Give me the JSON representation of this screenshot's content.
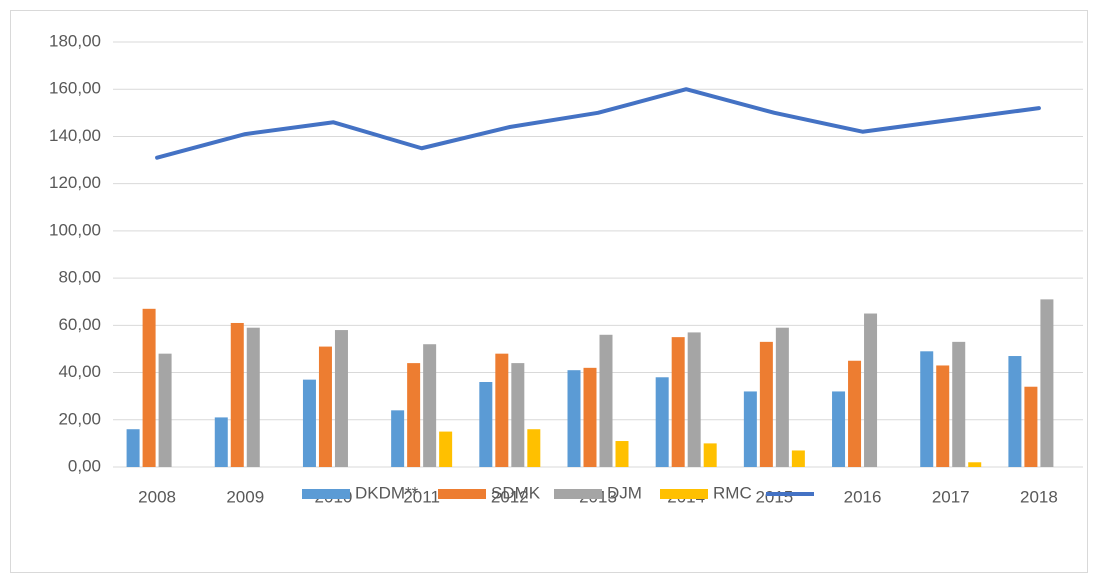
{
  "chart_data": {
    "type": "bar",
    "categories": [
      "2008",
      "2009",
      "2010",
      "2011",
      "2012",
      "2013",
      "2014",
      "2015",
      "2016",
      "2017",
      "2018"
    ],
    "series": [
      {
        "name": "DKDM**",
        "color": "#5b9bd5",
        "values": [
          16,
          21,
          37,
          24,
          36,
          41,
          38,
          32,
          32,
          49,
          47
        ]
      },
      {
        "name": "SDMK",
        "color": "#ed7d31",
        "values": [
          67,
          61,
          51,
          44,
          48,
          42,
          55,
          53,
          45,
          43,
          34
        ]
      },
      {
        "name": "DJM",
        "color": "#a5a5a5",
        "values": [
          48,
          59,
          58,
          52,
          44,
          56,
          57,
          59,
          65,
          53,
          71
        ]
      },
      {
        "name": "RMC",
        "color": "#ffc000",
        "values": [
          null,
          null,
          null,
          15,
          16,
          11,
          10,
          7,
          null,
          2,
          null
        ]
      },
      {
        "type": "line",
        "color": "#4472c4",
        "values": [
          131,
          141,
          146,
          135,
          144,
          150,
          160,
          150,
          142,
          147,
          152
        ]
      }
    ],
    "ylim": [
      0,
      180
    ],
    "yticks": [
      {
        "value": 0,
        "label": "0,00"
      },
      {
        "value": 20,
        "label": "20,00"
      },
      {
        "value": 40,
        "label": "40,00"
      },
      {
        "value": 60,
        "label": "60,00"
      },
      {
        "value": 80,
        "label": "80,00"
      },
      {
        "value": 100,
        "label": "100,00"
      },
      {
        "value": 120,
        "label": "120,00"
      },
      {
        "value": 140,
        "label": "140,00"
      },
      {
        "value": 160,
        "label": "160,00"
      },
      {
        "value": 180,
        "label": "180,00"
      }
    ],
    "grid": true,
    "legend": "bottom"
  }
}
